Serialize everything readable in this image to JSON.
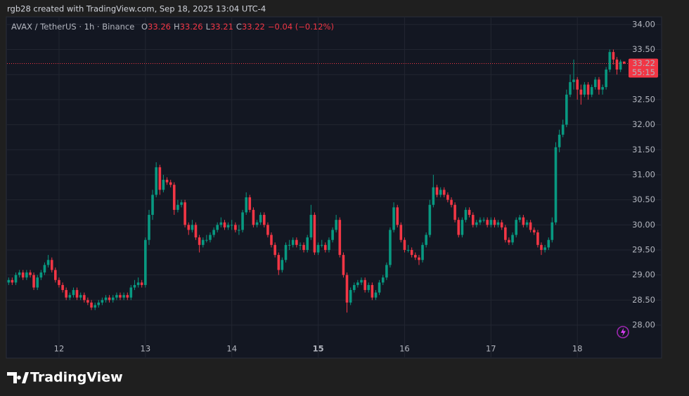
{
  "header": {
    "credit": "rgb28 created with TradingView.com, Sep 18, 2025 13:04 UTC-4"
  },
  "footer": {
    "brand": "TradingView"
  },
  "chart_data": {
    "type": "candlestick",
    "symbol": "AVAX / TetherUS · 1h · Binance",
    "ohlc_letters": [
      "O",
      "H",
      "L",
      "C"
    ],
    "change_label": "−0.04 (−0.12%)",
    "countdown": "55:15",
    "up_color": "#089981",
    "down_color": "#f23645",
    "grid": true,
    "xlim": [
      11.39,
      18.56
    ],
    "xticks": [
      12,
      13,
      14,
      15,
      16,
      17,
      18
    ],
    "ylim": [
      27.65,
      34.18
    ],
    "yticks": [
      {
        "value": 28,
        "label": "28.00"
      },
      {
        "value": 28.5,
        "label": "28.50"
      },
      {
        "value": 29,
        "label": "29.00"
      },
      {
        "value": 29.5,
        "label": "29.50"
      },
      {
        "value": 30,
        "label": "30.00"
      },
      {
        "value": 30.5,
        "label": "30.50"
      },
      {
        "value": 31,
        "label": "31.00"
      },
      {
        "value": 31.5,
        "label": "31.50"
      },
      {
        "value": 32,
        "label": "32.00"
      },
      {
        "value": 32.5,
        "label": "32.50"
      },
      {
        "value": 33,
        "label": "33.00"
      },
      {
        "value": 33.5,
        "label": "33.50"
      },
      {
        "value": 34,
        "label": "34.00"
      }
    ],
    "x": [
      11.417,
      11.458,
      11.5,
      11.542,
      11.583,
      11.625,
      11.667,
      11.708,
      11.75,
      11.792,
      11.833,
      11.875,
      11.917,
      11.958,
      12,
      12.042,
      12.083,
      12.125,
      12.167,
      12.208,
      12.25,
      12.292,
      12.333,
      12.375,
      12.417,
      12.458,
      12.5,
      12.542,
      12.583,
      12.625,
      12.667,
      12.708,
      12.75,
      12.792,
      12.833,
      12.875,
      12.917,
      12.958,
      13,
      13.042,
      13.083,
      13.125,
      13.167,
      13.208,
      13.25,
      13.292,
      13.333,
      13.375,
      13.417,
      13.458,
      13.5,
      13.542,
      13.583,
      13.625,
      13.667,
      13.708,
      13.75,
      13.792,
      13.833,
      13.875,
      13.917,
      13.958,
      14,
      14.042,
      14.083,
      14.125,
      14.167,
      14.208,
      14.25,
      14.292,
      14.333,
      14.375,
      14.417,
      14.458,
      14.5,
      14.542,
      14.583,
      14.625,
      14.667,
      14.708,
      14.75,
      14.792,
      14.833,
      14.875,
      14.917,
      14.958,
      15,
      15.042,
      15.083,
      15.125,
      15.167,
      15.208,
      15.25,
      15.292,
      15.333,
      15.375,
      15.417,
      15.458,
      15.5,
      15.542,
      15.583,
      15.625,
      15.667,
      15.708,
      15.75,
      15.792,
      15.833,
      15.875,
      15.917,
      15.958,
      16,
      16.042,
      16.083,
      16.125,
      16.167,
      16.208,
      16.25,
      16.292,
      16.333,
      16.375,
      16.417,
      16.458,
      16.5,
      16.542,
      16.583,
      16.625,
      16.667,
      16.708,
      16.75,
      16.792,
      16.833,
      16.875,
      16.917,
      16.958,
      17,
      17.042,
      17.083,
      17.125,
      17.167,
      17.208,
      17.25,
      17.292,
      17.333,
      17.375,
      17.417,
      17.458,
      17.5,
      17.542,
      17.583,
      17.625,
      17.667,
      17.708,
      17.75,
      17.792,
      17.833,
      17.875,
      17.917,
      17.958,
      18,
      18.042,
      18.083,
      18.125,
      18.167,
      18.208,
      18.25,
      18.292,
      18.333,
      18.375,
      18.417,
      18.458,
      18.5,
      18.542
    ],
    "open": [
      28.85,
      28.9,
      28.85,
      29.0,
      29.05,
      28.95,
      29.05,
      29.0,
      28.75,
      28.95,
      29.05,
      29.2,
      29.3,
      29.1,
      28.9,
      28.8,
      28.7,
      28.55,
      28.6,
      28.7,
      28.55,
      28.6,
      28.5,
      28.45,
      28.35,
      28.4,
      28.45,
      28.5,
      28.55,
      28.5,
      28.55,
      28.6,
      28.55,
      28.6,
      28.55,
      28.75,
      28.8,
      28.85,
      28.8,
      29.7,
      30.2,
      30.6,
      31.15,
      30.7,
      30.9,
      30.85,
      30.8,
      30.3,
      30.4,
      30.45,
      30.0,
      29.9,
      30.0,
      29.75,
      29.6,
      29.7,
      29.7,
      29.8,
      29.9,
      30.0,
      30.05,
      29.95,
      30.0,
      30.0,
      29.9,
      29.9,
      30.25,
      30.55,
      30.3,
      30.0,
      30.05,
      30.2,
      30.0,
      29.8,
      29.6,
      29.4,
      29.1,
      29.3,
      29.6,
      29.6,
      29.7,
      29.6,
      29.6,
      29.5,
      29.75,
      30.2,
      29.45,
      29.6,
      29.6,
      29.5,
      29.7,
      29.9,
      30.1,
      29.4,
      29.0,
      28.45,
      28.7,
      28.8,
      28.85,
      28.9,
      28.7,
      28.8,
      28.55,
      28.65,
      28.85,
      28.95,
      29.2,
      29.9,
      30.35,
      30.0,
      29.7,
      29.5,
      29.5,
      29.4,
      29.35,
      29.3,
      29.6,
      29.8,
      30.4,
      30.75,
      30.6,
      30.7,
      30.6,
      30.5,
      30.4,
      30.1,
      29.8,
      30.1,
      30.3,
      30.2,
      30.0,
      30.05,
      30.1,
      30.1,
      30.0,
      30.1,
      30.0,
      30.05,
      29.95,
      29.7,
      29.65,
      29.8,
      30.1,
      30.15,
      30.0,
      30.05,
      29.9,
      29.85,
      29.6,
      29.5,
      29.55,
      29.7,
      30.05,
      31.55,
      31.8,
      32.0,
      32.6,
      32.85,
      32.9,
      32.7,
      32.6,
      32.8,
      32.6,
      32.75,
      32.9,
      32.7,
      32.75,
      33.1,
      33.45,
      33.3,
      33.1,
      33.26
    ],
    "high": [
      28.95,
      28.95,
      29.05,
      29.1,
      29.1,
      29.1,
      29.1,
      29.05,
      29.0,
      29.1,
      29.25,
      29.4,
      29.35,
      29.15,
      28.95,
      28.85,
      28.75,
      28.65,
      28.75,
      28.75,
      28.65,
      28.65,
      28.55,
      28.5,
      28.45,
      28.5,
      28.55,
      28.6,
      28.6,
      28.6,
      28.65,
      28.65,
      28.65,
      28.65,
      28.8,
      28.9,
      28.95,
      28.9,
      29.75,
      30.3,
      30.7,
      31.25,
      31.2,
      31.0,
      30.95,
      30.9,
      30.85,
      30.5,
      30.5,
      30.5,
      30.05,
      30.1,
      30.05,
      29.8,
      29.75,
      29.8,
      29.85,
      29.95,
      30.05,
      30.15,
      30.1,
      30.05,
      30.1,
      30.05,
      30.0,
      30.3,
      30.65,
      30.6,
      30.35,
      30.1,
      30.25,
      30.25,
      30.05,
      29.85,
      29.65,
      29.45,
      29.35,
      29.65,
      29.7,
      29.75,
      29.75,
      29.65,
      29.65,
      29.8,
      30.4,
      30.25,
      29.65,
      29.7,
      29.65,
      29.75,
      29.95,
      30.2,
      30.15,
      29.45,
      29.05,
      28.75,
      28.85,
      28.9,
      28.95,
      28.95,
      28.85,
      28.85,
      28.7,
      28.9,
      29.0,
      29.25,
      29.95,
      30.45,
      30.4,
      30.05,
      29.75,
      29.6,
      29.55,
      29.45,
      29.4,
      29.65,
      29.85,
      30.5,
      31.0,
      30.8,
      30.75,
      30.75,
      30.65,
      30.55,
      30.45,
      30.15,
      30.15,
      30.35,
      30.35,
      30.25,
      30.1,
      30.15,
      30.15,
      30.15,
      30.15,
      30.15,
      30.1,
      30.1,
      30.0,
      29.75,
      29.85,
      30.15,
      30.2,
      30.2,
      30.1,
      30.1,
      29.95,
      29.9,
      29.65,
      29.6,
      29.75,
      30.15,
      31.65,
      31.9,
      32.1,
      32.7,
      33.0,
      33.3,
      32.95,
      32.8,
      32.85,
      32.85,
      32.8,
      32.95,
      32.95,
      32.8,
      33.15,
      33.5,
      33.5,
      33.35,
      33.3,
      33.26
    ],
    "low": [
      28.8,
      28.8,
      28.8,
      28.95,
      28.9,
      28.9,
      28.95,
      28.7,
      28.7,
      28.9,
      29.0,
      29.15,
      29.05,
      28.85,
      28.75,
      28.65,
      28.5,
      28.5,
      28.55,
      28.5,
      28.5,
      28.45,
      28.4,
      28.3,
      28.3,
      28.35,
      28.4,
      28.45,
      28.45,
      28.45,
      28.5,
      28.5,
      28.5,
      28.5,
      28.5,
      28.7,
      28.75,
      28.75,
      28.75,
      29.6,
      30.1,
      30.55,
      30.6,
      30.65,
      30.8,
      30.75,
      30.2,
      30.25,
      30.35,
      29.95,
      29.8,
      29.85,
      29.7,
      29.45,
      29.55,
      29.65,
      29.65,
      29.75,
      29.85,
      29.95,
      29.9,
      29.9,
      29.9,
      29.85,
      29.8,
      29.85,
      30.2,
      30.25,
      29.95,
      29.95,
      30.0,
      29.95,
      29.75,
      29.55,
      29.35,
      29.0,
      29.05,
      29.25,
      29.5,
      29.55,
      29.55,
      29.5,
      29.45,
      29.45,
      29.7,
      29.4,
      29.4,
      29.55,
      29.45,
      29.45,
      29.65,
      29.85,
      29.35,
      28.95,
      28.25,
      28.4,
      28.65,
      28.75,
      28.8,
      28.65,
      28.65,
      28.5,
      28.5,
      28.6,
      28.8,
      28.9,
      29.15,
      29.85,
      29.95,
      29.65,
      29.45,
      29.45,
      29.35,
      29.3,
      29.2,
      29.25,
      29.55,
      29.75,
      30.35,
      30.55,
      30.55,
      30.55,
      30.45,
      30.35,
      30.05,
      29.75,
      29.75,
      30.05,
      30.15,
      29.95,
      29.95,
      30.0,
      30.05,
      29.95,
      29.95,
      29.95,
      29.95,
      29.9,
      29.65,
      29.6,
      29.6,
      29.75,
      30.05,
      29.95,
      29.95,
      29.85,
      29.8,
      29.55,
      29.4,
      29.45,
      29.5,
      29.65,
      30.0,
      31.45,
      31.75,
      31.95,
      32.55,
      32.7,
      32.5,
      32.4,
      32.55,
      32.5,
      32.55,
      32.7,
      32.6,
      32.6,
      32.7,
      33.05,
      33.2,
      33.0,
      33.05,
      33.21
    ],
    "close": [
      28.9,
      28.85,
      29.0,
      29.05,
      28.95,
      29.05,
      29.0,
      28.75,
      28.95,
      29.05,
      29.2,
      29.3,
      29.1,
      28.9,
      28.8,
      28.7,
      28.55,
      28.6,
      28.7,
      28.55,
      28.6,
      28.5,
      28.45,
      28.35,
      28.4,
      28.45,
      28.5,
      28.55,
      28.5,
      28.55,
      28.6,
      28.55,
      28.6,
      28.55,
      28.75,
      28.8,
      28.85,
      28.8,
      29.7,
      30.2,
      30.6,
      31.15,
      30.7,
      30.9,
      30.85,
      30.8,
      30.3,
      30.4,
      30.45,
      30.0,
      29.9,
      30.0,
      29.75,
      29.6,
      29.7,
      29.7,
      29.8,
      29.9,
      30.0,
      30.05,
      29.95,
      30.0,
      30.0,
      29.9,
      29.9,
      30.25,
      30.55,
      30.3,
      30.0,
      30.05,
      30.2,
      30.0,
      29.8,
      29.6,
      29.4,
      29.1,
      29.3,
      29.6,
      29.6,
      29.7,
      29.6,
      29.6,
      29.5,
      29.75,
      30.2,
      29.45,
      29.6,
      29.6,
      29.5,
      29.7,
      29.9,
      30.1,
      29.4,
      29.0,
      28.45,
      28.7,
      28.8,
      28.85,
      28.9,
      28.7,
      28.8,
      28.55,
      28.65,
      28.85,
      28.95,
      29.2,
      29.9,
      30.35,
      30.0,
      29.7,
      29.5,
      29.5,
      29.4,
      29.35,
      29.3,
      29.6,
      29.8,
      30.4,
      30.75,
      30.6,
      30.7,
      30.6,
      30.5,
      30.4,
      30.1,
      29.8,
      30.1,
      30.3,
      30.2,
      30.0,
      30.05,
      30.1,
      30.1,
      30.0,
      30.1,
      30.0,
      30.05,
      29.95,
      29.7,
      29.65,
      29.8,
      30.1,
      30.15,
      30.0,
      30.05,
      29.9,
      29.85,
      29.6,
      29.5,
      29.55,
      29.7,
      30.05,
      31.55,
      31.8,
      32.0,
      32.6,
      32.85,
      32.9,
      32.7,
      32.6,
      32.8,
      32.6,
      32.75,
      32.9,
      32.7,
      32.75,
      33.1,
      33.45,
      33.3,
      33.1,
      33.26,
      33.22
    ]
  }
}
